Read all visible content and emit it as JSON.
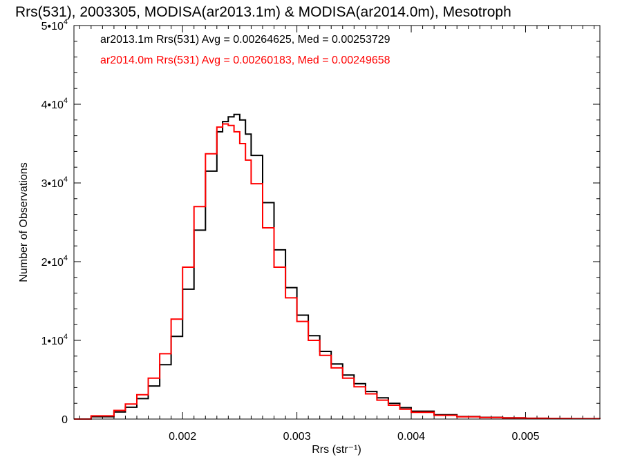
{
  "chart_data": {
    "type": "line",
    "title": "Rrs(531), 2003305, MODISA(ar2013.1m) & MODISA(ar2014.0m), Mesotroph",
    "xlabel": "Rrs (str⁻¹)",
    "ylabel": "Number of Observations",
    "xlim": [
      0.00105,
      0.00565
    ],
    "ylim": [
      0,
      50000
    ],
    "xticks": [
      0.002,
      0.003,
      0.004,
      0.005
    ],
    "xtick_labels": [
      "0.002",
      "0.003",
      "0.004",
      "0.005"
    ],
    "yticks": [
      {
        "value": 0,
        "label": "0",
        "exp": ""
      },
      {
        "value": 10000,
        "label": "1•10",
        "exp": "4"
      },
      {
        "value": 20000,
        "label": "2•10",
        "exp": "4"
      },
      {
        "value": 30000,
        "label": "3•10",
        "exp": "4"
      },
      {
        "value": 40000,
        "label": "4•10",
        "exp": "4"
      },
      {
        "value": 50000,
        "label": "5•10",
        "exp": "4"
      }
    ],
    "grid": false,
    "legend_position": "top-left",
    "annotations": [
      "ar2013.1m Rrs(531) Avg = 0.00264625, Med = 0.00253729",
      "ar2014.0m Rrs(531) Avg = 0.00260183, Med = 0.00249658"
    ],
    "series": [
      {
        "color": "#000000",
        "x": [
          0.00105,
          0.0012,
          0.0014,
          0.0015,
          0.0016,
          0.0017,
          0.0018,
          0.0019,
          0.002,
          0.0021,
          0.0022,
          0.0023,
          0.00235,
          0.0024,
          0.00245,
          0.0025,
          0.00255,
          0.0026,
          0.0027,
          0.0028,
          0.0029,
          0.003,
          0.0031,
          0.0032,
          0.0033,
          0.0034,
          0.0035,
          0.0036,
          0.0037,
          0.0038,
          0.0039,
          0.004,
          0.0042,
          0.0044,
          0.0046,
          0.0048,
          0.005,
          0.0052,
          0.0054,
          0.00565
        ],
        "y": [
          0,
          300,
          900,
          1500,
          2600,
          4200,
          6900,
          10500,
          16500,
          24000,
          31500,
          36500,
          37800,
          38400,
          38700,
          38000,
          36200,
          33500,
          27500,
          21500,
          16700,
          13200,
          10600,
          8600,
          7000,
          5600,
          4500,
          3500,
          2700,
          2000,
          1450,
          1000,
          550,
          320,
          220,
          150,
          100,
          70,
          50,
          30
        ]
      },
      {
        "color": "#ff0000",
        "x": [
          0.00105,
          0.0012,
          0.0014,
          0.0015,
          0.0016,
          0.0017,
          0.0018,
          0.0019,
          0.002,
          0.0021,
          0.0022,
          0.0023,
          0.00235,
          0.0024,
          0.00245,
          0.0025,
          0.00255,
          0.0026,
          0.0027,
          0.0028,
          0.0029,
          0.003,
          0.0031,
          0.0032,
          0.0033,
          0.0034,
          0.0035,
          0.0036,
          0.0037,
          0.0038,
          0.0039,
          0.004,
          0.0042,
          0.0044,
          0.0046,
          0.0048,
          0.005,
          0.0052,
          0.0054,
          0.00565
        ],
        "y": [
          0,
          400,
          1100,
          1900,
          3100,
          5200,
          8300,
          12700,
          19300,
          27000,
          33700,
          37100,
          37500,
          37300,
          36500,
          35000,
          32900,
          29900,
          24300,
          19300,
          15400,
          12400,
          10000,
          8100,
          6500,
          5200,
          4100,
          3200,
          2400,
          1750,
          1250,
          850,
          470,
          290,
          200,
          140,
          95,
          65,
          45,
          25
        ]
      }
    ]
  }
}
